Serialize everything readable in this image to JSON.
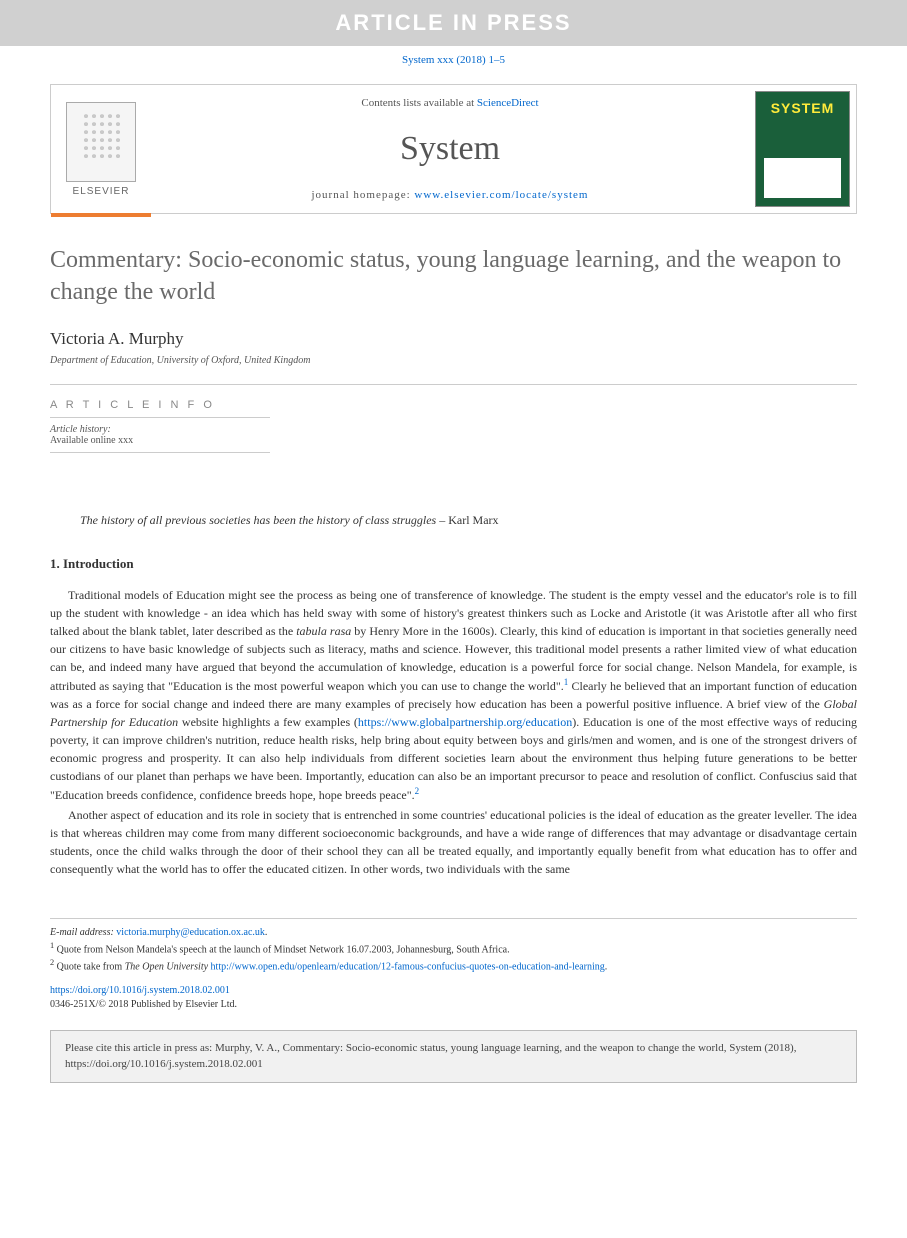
{
  "banner": {
    "text": "ARTICLE IN PRESS",
    "bg": "#d0d0d0",
    "fg": "#ffffff"
  },
  "running_head": {
    "prefix": "System xxx (2018) 1–5"
  },
  "masthead": {
    "contents_prefix": "Contents lists available at ",
    "contents_link": "ScienceDirect",
    "journal": "System",
    "homepage_prefix": "journal homepage: ",
    "homepage_url": "www.elsevier.com/locate/system",
    "publisher": "ELSEVIER",
    "cover_label": "SYSTEM",
    "orange": "#ed7d31",
    "cover_bg": "#1a5f3a",
    "cover_title_color": "#ffeb3b"
  },
  "article": {
    "title": "Commentary: Socio-economic status, young language learning, and the weapon to change the world",
    "author": "Victoria A. Murphy",
    "affiliation": "Department of Education, University of Oxford, United Kingdom",
    "info_heading": "A R T I C L E   I N F O",
    "history_label": "Article history:",
    "available_online": "Available online xxx",
    "epigraph_text": "The history of all previous societies has been the history of class struggles",
    "epigraph_attrib": " – Karl Marx",
    "section1_heading": "1.  Introduction",
    "p1_a": "Traditional models of Education might see the process as being one of transference of knowledge. The student is the empty vessel and the educator's role is to fill up the student with knowledge - an idea which has held sway with some of history's greatest thinkers such as Locke and Aristotle (it was Aristotle after all who first talked about the blank tablet, later described as the ",
    "p1_tabula": "tabula rasa",
    "p1_b": " by Henry More in the 1600s). Clearly, this kind of education is important in that societies generally need our citizens to have basic knowledge of subjects such as literacy, maths and science. However, this traditional model presents a rather limited view of what education can be, and indeed many have argued that beyond the accumulation of knowledge, education is a powerful force for social change. Nelson Mandela, for example, is attributed as saying that \"Education is the most powerful weapon which you can use to change the world\".",
    "p1_c": " Clearly he believed that an important function of education was as a force for social change and indeed there are many examples of precisely how education has been a powerful positive influence. A brief view of the ",
    "p1_gpe": "Global Partnership for Education",
    "p1_d": " website highlights a few examples (",
    "p1_gpe_url": "https://www.globalpartnership.org/education",
    "p1_e": "). Education is one of the most effective ways of reducing poverty, it can improve children's nutrition, reduce health risks, help bring about equity between boys and girls/men and women, and is one of the strongest drivers of economic progress and prosperity. It can also help individuals from different societies learn about the environment thus helping future generations to be better custodians of our planet than perhaps we have been. Importantly, education can also be an important precursor to peace and resolution of conflict. Confuscius said that \"Education breeds confidence, confidence breeds hope, hope breeds peace\".",
    "p2": "Another aspect of education and its role in society that is entrenched in some countries' educational policies is the ideal of education as the greater leveller. The idea is that whereas children may come from many different socioeconomic backgrounds, and have a wide range of differences that may advantage or disadvantage certain students, once the child walks through the door of their school they can all be treated equally, and importantly equally benefit from what education has to offer and consequently what the world has to offer the educated citizen. In other words, two individuals with the same"
  },
  "footnotes": {
    "email_label": "E-mail address: ",
    "email": "victoria.murphy@education.ox.ac.uk",
    "email_suffix": ".",
    "fn1_marker": "1",
    "fn1_text": " Quote from Nelson Mandela's speech at the launch of Mindset Network 16.07.2003, Johannesburg, South Africa.",
    "fn2_marker": "2",
    "fn2_prefix": " Quote take from ",
    "fn2_source": "The Open University",
    "fn2_url": " http://www.open.edu/openlearn/education/12-famous-confucius-quotes-on-education-and-learning",
    "fn2_suffix": "."
  },
  "doi": {
    "url": "https://doi.org/10.1016/j.system.2018.02.001",
    "issn_line": "0346-251X/© 2018 Published by Elsevier Ltd."
  },
  "cite_box": {
    "text": "Please cite this article in press as: Murphy, V. A., Commentary: Socio-economic status, young language learning, and the weapon to change the world, System (2018), https://doi.org/10.1016/j.system.2018.02.001"
  }
}
